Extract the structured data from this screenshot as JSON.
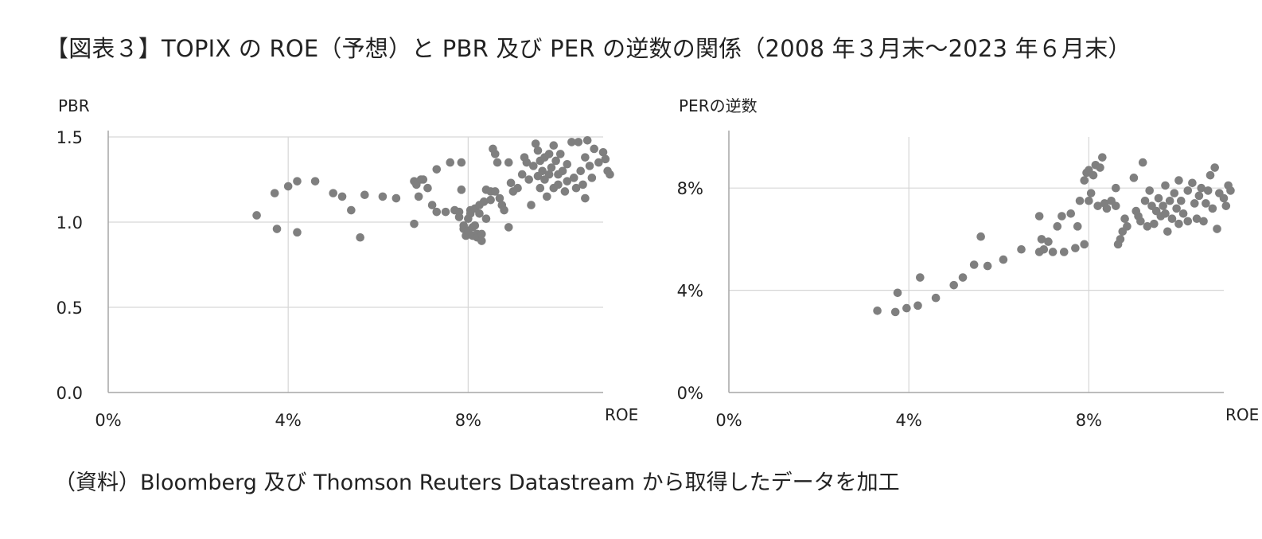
{
  "page": {
    "title": "【図表３】TOPIX の ROE（予想）と PBR 及び PER の逆数の関係（2008 年３月末～2023 年６月末）",
    "source": "（資料）Bloomberg 及び Thomson Reuters Datastream から取得したデータを加工"
  },
  "colors": {
    "marker": "#7f7f7f",
    "grid": "#d6d6d6",
    "axis": "#a6a6a6"
  },
  "chart_data": [
    {
      "type": "scatter",
      "ylabel": "PBR",
      "xlabel": "ROE",
      "xlim": [
        0,
        11
      ],
      "ylim": [
        0,
        1.5
      ],
      "x_ticks": [
        0,
        4,
        8
      ],
      "x_tick_labels": [
        "0%",
        "4%",
        "8%"
      ],
      "y_ticks": [
        0,
        0.5,
        1.0,
        1.5
      ],
      "y_tick_labels": [
        "0.0",
        "0.5",
        "1.0",
        "1.5"
      ],
      "grid": "horizontal and vertical",
      "points": [
        [
          3.3,
          1.04
        ],
        [
          3.7,
          1.17
        ],
        [
          3.75,
          0.96
        ],
        [
          4.0,
          1.21
        ],
        [
          4.2,
          1.24
        ],
        [
          4.2,
          0.94
        ],
        [
          4.6,
          1.24
        ],
        [
          5.0,
          1.17
        ],
        [
          5.2,
          1.15
        ],
        [
          5.4,
          1.07
        ],
        [
          5.6,
          0.91
        ],
        [
          5.7,
          1.16
        ],
        [
          6.1,
          1.15
        ],
        [
          6.4,
          1.14
        ],
        [
          6.8,
          0.99
        ],
        [
          6.8,
          1.24
        ],
        [
          6.85,
          1.22
        ],
        [
          6.9,
          1.15
        ],
        [
          6.95,
          1.25
        ],
        [
          7.0,
          1.25
        ],
        [
          7.1,
          1.2
        ],
        [
          7.2,
          1.1
        ],
        [
          7.3,
          1.06
        ],
        [
          7.3,
          1.31
        ],
        [
          7.5,
          1.06
        ],
        [
          7.6,
          1.35
        ],
        [
          7.7,
          1.07
        ],
        [
          7.8,
          1.03
        ],
        [
          7.8,
          1.06
        ],
        [
          7.85,
          1.19
        ],
        [
          7.85,
          1.35
        ],
        [
          7.9,
          0.96
        ],
        [
          7.9,
          0.98
        ],
        [
          7.95,
          0.92
        ],
        [
          8.0,
          1.02
        ],
        [
          8.0,
          0.95
        ],
        [
          8.05,
          1.07
        ],
        [
          8.05,
          1.05
        ],
        [
          8.1,
          0.97
        ],
        [
          8.1,
          0.92
        ],
        [
          8.15,
          0.98
        ],
        [
          8.15,
          1.08
        ],
        [
          8.2,
          0.93
        ],
        [
          8.2,
          0.91
        ],
        [
          8.25,
          1.05
        ],
        [
          8.25,
          1.1
        ],
        [
          8.3,
          0.89
        ],
        [
          8.3,
          0.93
        ],
        [
          8.35,
          1.12
        ],
        [
          8.4,
          1.02
        ],
        [
          8.4,
          1.19
        ],
        [
          8.5,
          1.13
        ],
        [
          8.5,
          1.18
        ],
        [
          8.55,
          1.43
        ],
        [
          8.6,
          1.4
        ],
        [
          8.6,
          1.18
        ],
        [
          8.65,
          1.35
        ],
        [
          8.7,
          1.14
        ],
        [
          8.75,
          1.1
        ],
        [
          8.8,
          1.07
        ],
        [
          8.9,
          1.35
        ],
        [
          8.9,
          0.97
        ],
        [
          8.95,
          1.23
        ],
        [
          9.0,
          1.18
        ],
        [
          9.1,
          1.2
        ],
        [
          9.2,
          1.28
        ],
        [
          9.25,
          1.38
        ],
        [
          9.3,
          1.35
        ],
        [
          9.35,
          1.25
        ],
        [
          9.4,
          1.1
        ],
        [
          9.45,
          1.33
        ],
        [
          9.5,
          1.46
        ],
        [
          9.55,
          1.27
        ],
        [
          9.55,
          1.42
        ],
        [
          9.6,
          1.36
        ],
        [
          9.6,
          1.2
        ],
        [
          9.65,
          1.3
        ],
        [
          9.7,
          1.38
        ],
        [
          9.7,
          1.25
        ],
        [
          9.75,
          1.15
        ],
        [
          9.8,
          1.4
        ],
        [
          9.8,
          1.28
        ],
        [
          9.85,
          1.32
        ],
        [
          9.9,
          1.45
        ],
        [
          9.9,
          1.2
        ],
        [
          9.95,
          1.36
        ],
        [
          10.0,
          1.28
        ],
        [
          10.0,
          1.22
        ],
        [
          10.05,
          1.4
        ],
        [
          10.1,
          1.3
        ],
        [
          10.15,
          1.18
        ],
        [
          10.2,
          1.34
        ],
        [
          10.2,
          1.24
        ],
        [
          10.3,
          1.47
        ],
        [
          10.35,
          1.26
        ],
        [
          10.4,
          1.2
        ],
        [
          10.45,
          1.47
        ],
        [
          10.5,
          1.3
        ],
        [
          10.55,
          1.22
        ],
        [
          10.6,
          1.14
        ],
        [
          10.6,
          1.38
        ],
        [
          10.65,
          1.48
        ],
        [
          10.7,
          1.33
        ],
        [
          10.75,
          1.26
        ],
        [
          10.8,
          1.43
        ],
        [
          10.9,
          1.35
        ],
        [
          11.0,
          1.41
        ],
        [
          11.05,
          1.37
        ],
        [
          11.1,
          1.3
        ],
        [
          11.15,
          1.28
        ]
      ]
    },
    {
      "type": "scatter",
      "ylabel": "PERの逆数",
      "xlabel": "ROE",
      "xlim": [
        0,
        11
      ],
      "ylim": [
        0,
        10
      ],
      "x_ticks": [
        0,
        4,
        8
      ],
      "x_tick_labels": [
        "0%",
        "4%",
        "8%"
      ],
      "y_ticks": [
        0,
        4,
        8
      ],
      "y_tick_labels": [
        "0%",
        "4%",
        "8%"
      ],
      "grid": "horizontal and vertical",
      "points": [
        [
          3.3,
          3.2
        ],
        [
          3.7,
          3.15
        ],
        [
          3.75,
          3.9
        ],
        [
          3.95,
          3.3
        ],
        [
          4.2,
          3.4
        ],
        [
          4.25,
          4.5
        ],
        [
          4.6,
          3.7
        ],
        [
          5.0,
          4.2
        ],
        [
          5.2,
          4.5
        ],
        [
          5.45,
          5.0
        ],
        [
          5.6,
          6.1
        ],
        [
          5.75,
          4.95
        ],
        [
          6.1,
          5.2
        ],
        [
          6.5,
          5.6
        ],
        [
          6.9,
          5.5
        ],
        [
          6.9,
          6.9
        ],
        [
          6.95,
          6.0
        ],
        [
          7.0,
          5.6
        ],
        [
          7.1,
          5.9
        ],
        [
          7.2,
          5.5
        ],
        [
          7.3,
          6.5
        ],
        [
          7.4,
          6.9
        ],
        [
          7.45,
          5.5
        ],
        [
          7.6,
          7.0
        ],
        [
          7.7,
          5.65
        ],
        [
          7.75,
          6.5
        ],
        [
          7.8,
          7.5
        ],
        [
          7.9,
          5.8
        ],
        [
          7.9,
          8.3
        ],
        [
          7.95,
          8.6
        ],
        [
          8.0,
          8.7
        ],
        [
          8.0,
          7.5
        ],
        [
          8.05,
          7.8
        ],
        [
          8.1,
          8.5
        ],
        [
          8.15,
          8.9
        ],
        [
          8.2,
          7.3
        ],
        [
          8.25,
          8.8
        ],
        [
          8.3,
          9.2
        ],
        [
          8.35,
          7.4
        ],
        [
          8.4,
          7.2
        ],
        [
          8.5,
          7.5
        ],
        [
          8.6,
          8.0
        ],
        [
          8.6,
          7.3
        ],
        [
          8.65,
          5.8
        ],
        [
          8.7,
          6.0
        ],
        [
          8.75,
          6.3
        ],
        [
          8.8,
          6.8
        ],
        [
          8.85,
          6.5
        ],
        [
          9.0,
          8.4
        ],
        [
          9.05,
          7.1
        ],
        [
          9.1,
          6.9
        ],
        [
          9.15,
          6.7
        ],
        [
          9.2,
          9.0
        ],
        [
          9.25,
          7.5
        ],
        [
          9.3,
          6.5
        ],
        [
          9.35,
          7.9
        ],
        [
          9.4,
          7.3
        ],
        [
          9.45,
          6.6
        ],
        [
          9.5,
          7.1
        ],
        [
          9.55,
          7.6
        ],
        [
          9.6,
          6.9
        ],
        [
          9.65,
          7.3
        ],
        [
          9.7,
          8.1
        ],
        [
          9.7,
          7.0
        ],
        [
          9.75,
          6.3
        ],
        [
          9.8,
          7.5
        ],
        [
          9.85,
          6.8
        ],
        [
          9.9,
          7.8
        ],
        [
          9.95,
          7.2
        ],
        [
          10.0,
          6.6
        ],
        [
          10.0,
          8.3
        ],
        [
          10.05,
          7.5
        ],
        [
          10.1,
          7.0
        ],
        [
          10.2,
          7.9
        ],
        [
          10.2,
          6.7
        ],
        [
          10.3,
          8.2
        ],
        [
          10.35,
          7.4
        ],
        [
          10.4,
          6.8
        ],
        [
          10.45,
          7.7
        ],
        [
          10.5,
          8.0
        ],
        [
          10.55,
          6.7
        ],
        [
          10.6,
          7.4
        ],
        [
          10.65,
          7.9
        ],
        [
          10.7,
          8.5
        ],
        [
          10.75,
          7.2
        ],
        [
          10.8,
          8.8
        ],
        [
          10.85,
          6.4
        ],
        [
          10.9,
          7.8
        ],
        [
          11.0,
          7.6
        ],
        [
          11.05,
          7.3
        ],
        [
          11.1,
          8.1
        ],
        [
          11.15,
          7.9
        ]
      ]
    }
  ]
}
